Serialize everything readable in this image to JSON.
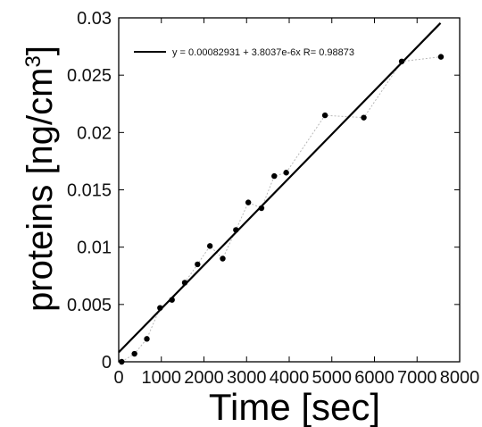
{
  "chart_data": {
    "type": "scatter",
    "xlabel": "Time [sec]",
    "ylabel_main": "proteins [ng/cm",
    "ylabel_sup": "3",
    "ylabel_close": "]",
    "xlim": [
      0,
      8000
    ],
    "ylim": [
      0,
      0.03
    ],
    "x_ticks": [
      "0",
      "1000",
      "2000",
      "3000",
      "4000",
      "5000",
      "6000",
      "7000",
      "8000"
    ],
    "y_ticks": [
      "0",
      "0.005",
      "0.01",
      "0.015",
      "0.02",
      "0.025",
      "0.03"
    ],
    "grid": false,
    "legend_position": "top-left",
    "legend_text": "y = 0.00082931 + 3.8037e-6x   R= 0.98873",
    "fit": {
      "intercept": 0.00082931,
      "slope": 3.8037e-06,
      "x_range": [
        0,
        7550
      ]
    },
    "points": [
      {
        "x": 70,
        "y": 0.0
      },
      {
        "x": 370,
        "y": 0.0007
      },
      {
        "x": 660,
        "y": 0.002
      },
      {
        "x": 970,
        "y": 0.0047
      },
      {
        "x": 1250,
        "y": 0.0054
      },
      {
        "x": 1550,
        "y": 0.0069
      },
      {
        "x": 1850,
        "y": 0.0085
      },
      {
        "x": 2140,
        "y": 0.0101
      },
      {
        "x": 2440,
        "y": 0.009
      },
      {
        "x": 2750,
        "y": 0.0115
      },
      {
        "x": 3040,
        "y": 0.0139
      },
      {
        "x": 3350,
        "y": 0.0134
      },
      {
        "x": 3650,
        "y": 0.0162
      },
      {
        "x": 3930,
        "y": 0.0165
      },
      {
        "x": 4840,
        "y": 0.0215
      },
      {
        "x": 5750,
        "y": 0.0213
      },
      {
        "x": 6640,
        "y": 0.0262
      },
      {
        "x": 7560,
        "y": 0.0266
      }
    ],
    "colors": {
      "axis": "#000000",
      "fit_line": "#000000",
      "points": "#000000",
      "connector": "#b8b8b8"
    }
  }
}
